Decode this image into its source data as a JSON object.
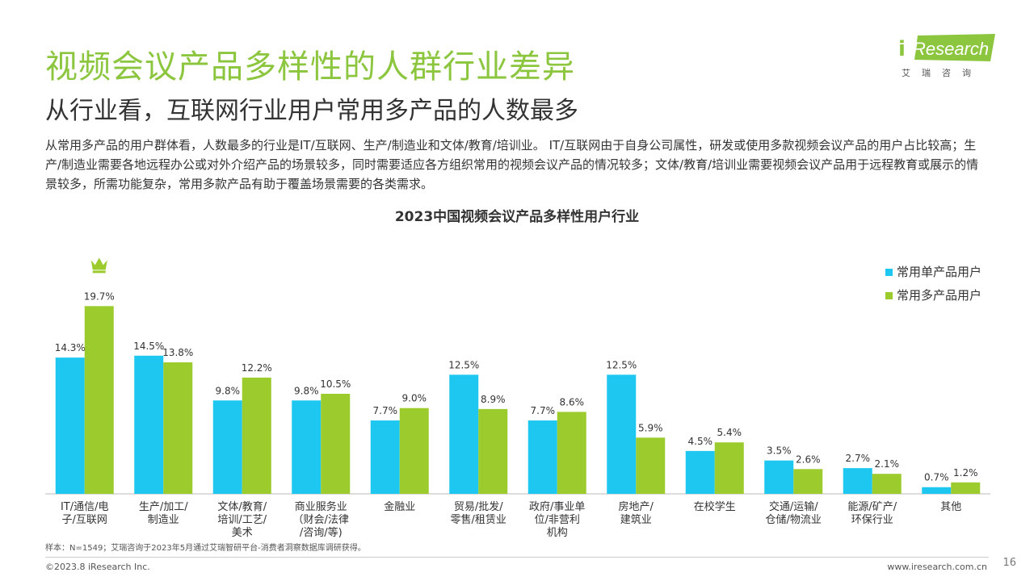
{
  "header": {
    "title": "视频会议产品多样性的人群行业差异",
    "subtitle": "从行业看，互联网行业用户常用多产品的人数最多",
    "body": "从常用多产品的用户群体看，人数最多的行业是IT/互联网、生产/制造业和文体/教育/培训业。 IT/互联网由于自身公司属性，研发或使用多款视频会议产品的用户占比较高；生产/制造业需要各地远程办公或对外介绍产品的场景较多，同时需要适应各方组织常用的视频会议产品的情况较多；文体/教育/培训业需要视频会议产品用于远程教育或展示的情景较多，所需功能复杂，常用多款产品有助于覆盖场景需要的各类需求。"
  },
  "logo": {
    "wordmark_i": "i",
    "wordmark": "Research",
    "cn": "艾瑞咨询"
  },
  "chart_data": {
    "type": "bar",
    "title": "2023中国视频会议产品多样性用户行业",
    "categories": [
      [
        "IT/通信/电",
        "子/互联网"
      ],
      [
        "生产/加工/",
        "制造业"
      ],
      [
        "文体/教育/",
        "培训/工艺/",
        "美术"
      ],
      [
        "商业服务业",
        "（财会/法律",
        "/咨询/等)"
      ],
      [
        "金融业"
      ],
      [
        "贸易/批发/",
        "零售/租赁业"
      ],
      [
        "政府/事业单",
        "位/非营利",
        "机构"
      ],
      [
        "房地产/",
        "建筑业"
      ],
      [
        "在校学生"
      ],
      [
        "交通/运输/",
        "仓储/物流业"
      ],
      [
        "能源/矿产/",
        "环保行业"
      ],
      [
        "其他"
      ]
    ],
    "series": [
      {
        "name": "常用单产品用户",
        "color": "#1ec7ef",
        "values": [
          14.3,
          14.5,
          9.8,
          9.8,
          7.7,
          12.5,
          7.7,
          12.5,
          4.5,
          3.5,
          2.7,
          0.7
        ],
        "labels": [
          "14.3%",
          "14.5%",
          "9.8%",
          "9.8%",
          "7.7%",
          "12.5%",
          "7.7%",
          "12.5%",
          "4.5%",
          "3.5%",
          "2.7%",
          "0.7%"
        ]
      },
      {
        "name": "常用多产品用户",
        "color": "#9ccb2d",
        "values": [
          19.7,
          13.8,
          12.2,
          10.5,
          9.0,
          8.9,
          8.6,
          5.9,
          5.4,
          2.6,
          2.1,
          1.2
        ],
        "labels": [
          "19.7%",
          "13.8%",
          "12.2%",
          "10.5%",
          "9.0%",
          "8.9%",
          "8.6%",
          "5.9%",
          "5.4%",
          "2.6%",
          "2.1%",
          "1.2%"
        ]
      }
    ],
    "ylim": [
      0,
      21
    ],
    "legend": "top-right",
    "highlight_icon": "crown-icon",
    "grid": false
  },
  "footer": {
    "note": "样本：N=1549；艾瑞咨询于2023年5月通过艾瑞智研平台-消费者洞察数据库调研获得。",
    "copyright": "©2023.8 iResearch Inc.",
    "website": "www.iresearch.com.cn",
    "page": "16"
  }
}
